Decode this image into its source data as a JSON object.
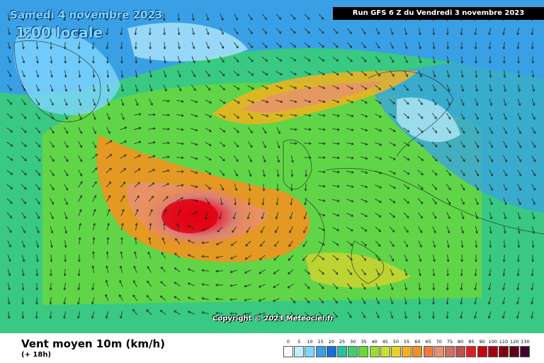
{
  "header": {
    "date": "Samedi 4 novembre 2023",
    "time": "1:00 locale",
    "run": "Run GFS 6 Z du Vendredi 3 novembre 2023"
  },
  "copyright": "Copyright © 2023 Meteociel.fr",
  "legend": {
    "title": "Vent moyen 10m (km/h)",
    "subtitle": "(+ 18h)",
    "ticks": [
      "0",
      "5",
      "10",
      "15",
      "20",
      "25",
      "30",
      "35",
      "40",
      "45",
      "50",
      "55",
      "60",
      "65",
      "70",
      "75",
      "80",
      "85",
      "90",
      "100",
      "110",
      "120",
      "130"
    ],
    "colors": [
      "#ffffff",
      "#bfeeff",
      "#7fd6ff",
      "#3aa0e6",
      "#1a6fd6",
      "#22c4a0",
      "#3ad070",
      "#6ad83a",
      "#9cdc32",
      "#c8e030",
      "#e6d22a",
      "#f2b21e",
      "#f2921e",
      "#f07838",
      "#e89070",
      "#d07060",
      "#c05050",
      "#e02020",
      "#c80010",
      "#a00010",
      "#800010",
      "#600018",
      "#400030"
    ]
  },
  "map_layers": {
    "description_free": true,
    "land_color": "#1a6fd6",
    "sea_color": "#3aa0e6"
  }
}
